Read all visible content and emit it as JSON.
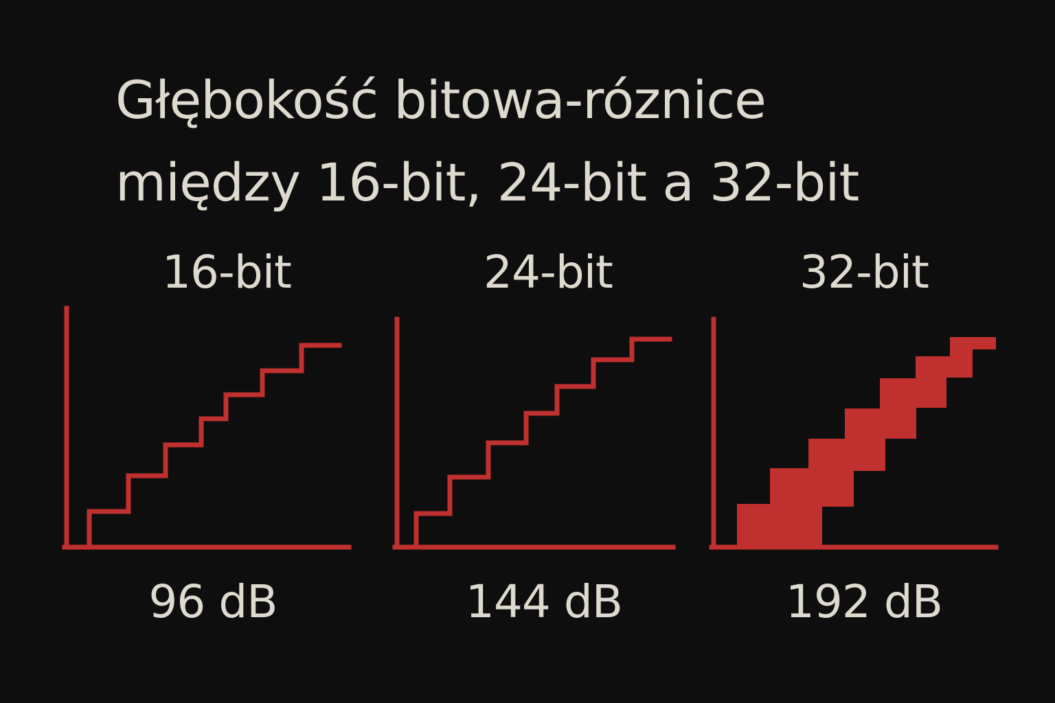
{
  "title": {
    "line1": "Głębokość bitowa-róznice",
    "line2": "między 16-bit, 24-bit a 32-bit"
  },
  "colors": {
    "background": "#0e0e0e",
    "text": "#dedacf",
    "accent": "#c0302f"
  },
  "panels": [
    {
      "label": "16-bit",
      "value": "96 dB",
      "style": "thin-staircase"
    },
    {
      "label": "24-bit",
      "value": "144 dB",
      "style": "thin-staircase"
    },
    {
      "label": "32-bit",
      "value": "192 dB",
      "style": "filled-staircase"
    }
  ]
}
